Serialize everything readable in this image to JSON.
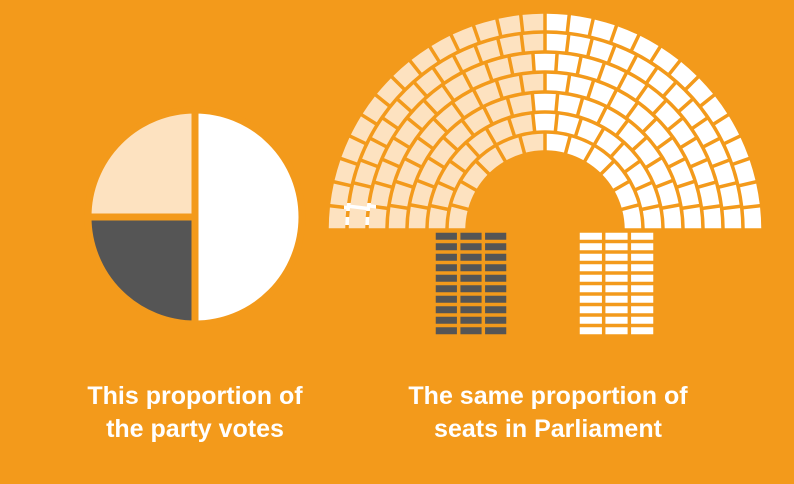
{
  "colors": {
    "background": "#F39A1B",
    "white": "#FFFFFF",
    "light": "#FDE2C0",
    "dark": "#555555"
  },
  "pie": {
    "slices": [
      {
        "share": 0.5,
        "color": "#FFFFFF"
      },
      {
        "share": 0.25,
        "color": "#555555"
      },
      {
        "share": 0.25,
        "color": "#FDE2C0"
      }
    ]
  },
  "equals_sign": "=",
  "parliament": {
    "shares": {
      "white": 0.5,
      "dark": 0.25,
      "light": 0.25
    }
  },
  "captions": {
    "left_line1": "This proportion of",
    "left_line2": "the party votes",
    "right_line1": "The same proportion of",
    "right_line2": "seats in Parliament"
  },
  "icons": {
    "pie": "pie-chart-icon",
    "parliament": "parliament-seats-icon"
  }
}
